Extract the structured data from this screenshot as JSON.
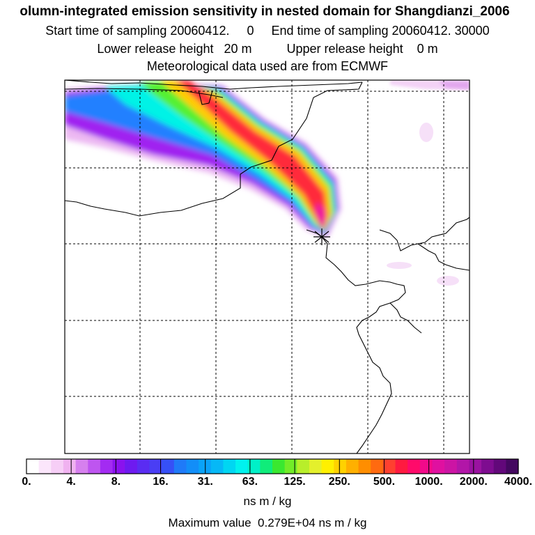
{
  "header": {
    "title": "olumn-integrated emission sensitivity in nested domain for Shangdianzi_2006",
    "sampling": "Start time of sampling 20060412.     0     End time of sampling 20060412. 30000",
    "release": "Lower release height   20 m          Upper release height    0 m",
    "meteo": "Meteorological data used are from ECMWF"
  },
  "map": {
    "receptor_marker": "Shangdianzi station (star marker)",
    "grid": "dashed lat/lon grid",
    "colors": {
      "very_low": "#e8b4f0",
      "low": "#9a22f2",
      "mid_low": "#1d8cff",
      "mid": "#00f5e8",
      "mid_high": "#55f030",
      "high": "#ffd400",
      "very_high": "#ff2a3a",
      "max": "#f0169c"
    }
  },
  "colorbar": {
    "ticks": [
      "0.",
      "4.",
      "8.",
      "16.",
      "31.",
      "63.",
      "125.",
      "250.",
      "500.",
      "1000.",
      "2000.",
      "4000."
    ],
    "units": "ns m / kg",
    "colors": [
      "#ffffff",
      "#fbe6fb",
      "#f6cef6",
      "#f0b2f0",
      "#d680ee",
      "#be55f0",
      "#a32bf2",
      "#8a12ee",
      "#6e1af0",
      "#5a2cf2",
      "#4a3ef4",
      "#3650f6",
      "#1f7af8",
      "#128ef8",
      "#0aa2f8",
      "#06b8f6",
      "#00d6f2",
      "#00f2ee",
      "#00f0c8",
      "#10ec7a",
      "#3ae830",
      "#72ec28",
      "#b8ee2a",
      "#e4f02c",
      "#fff000",
      "#ffd200",
      "#ffb000",
      "#ff8e00",
      "#ff6a10",
      "#ff4030",
      "#ff1a40",
      "#ff0a6a",
      "#f20a8a",
      "#e010a0",
      "#cc14a4",
      "#b216a8",
      "#9a12a0",
      "#7e0c90",
      "#62087a",
      "#440860"
    ]
  },
  "max_value": "Maximum value  0.279E+04 ns m / kg"
}
